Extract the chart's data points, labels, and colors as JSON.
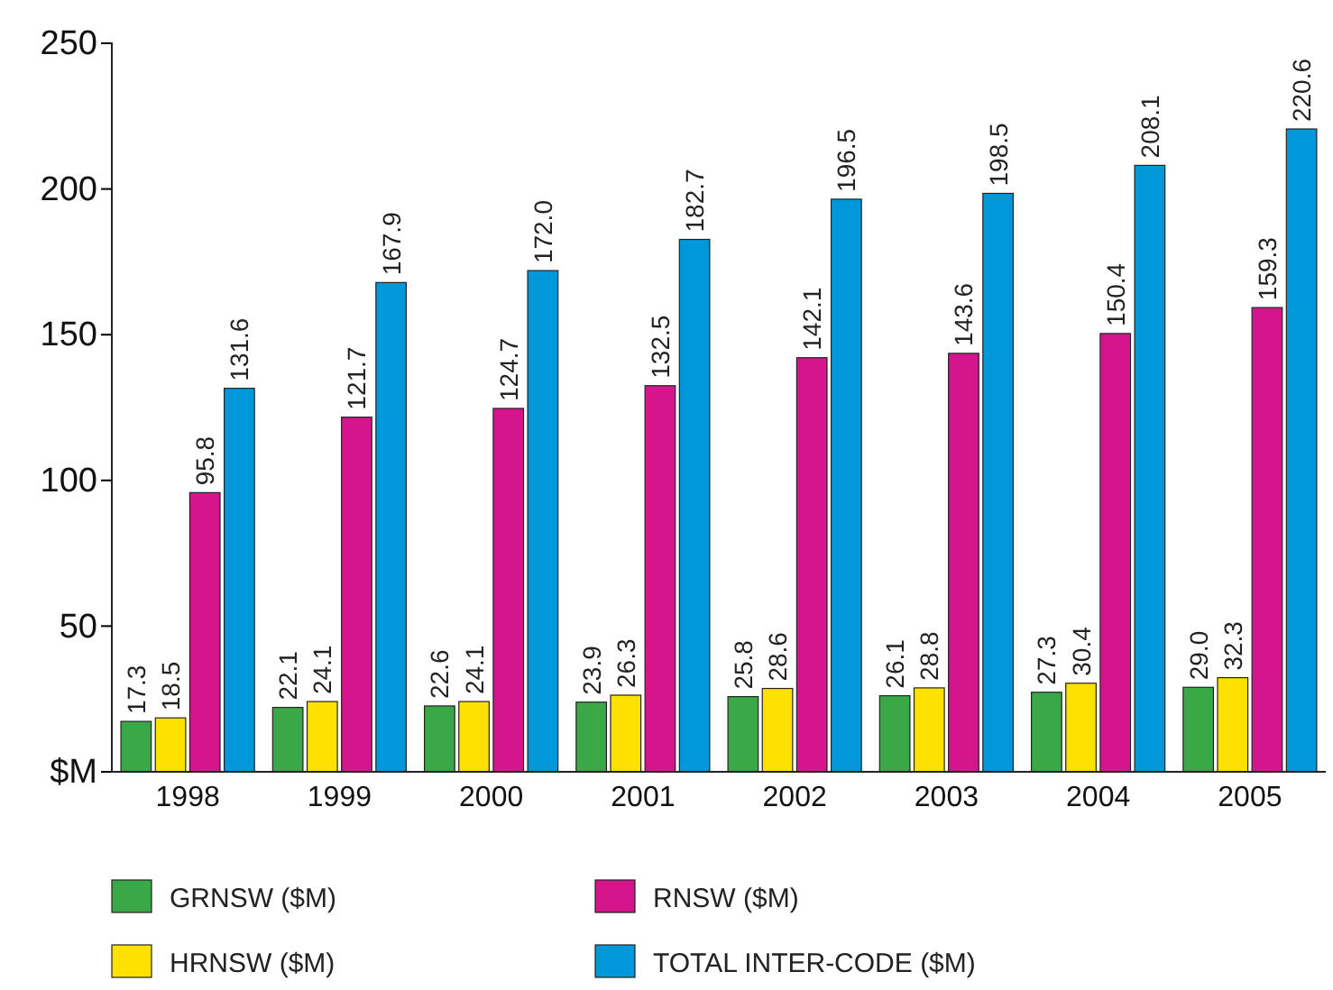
{
  "chart_data": {
    "type": "bar",
    "categories": [
      "1998",
      "1999",
      "2000",
      "2001",
      "2002",
      "2003",
      "2004",
      "2005"
    ],
    "series": [
      {
        "name": "GRNSW ($M)",
        "color": "#3aa846",
        "values": [
          17.3,
          22.1,
          22.6,
          23.9,
          25.8,
          26.1,
          27.3,
          29.0
        ],
        "value_labels": [
          "17.3",
          "22.1",
          "22.6",
          "23.9",
          "25.8",
          "26.1",
          "27.3",
          "29.0"
        ]
      },
      {
        "name": "HRNSW ($M)",
        "color": "#ffe100",
        "values": [
          18.5,
          24.1,
          24.1,
          26.3,
          28.6,
          28.8,
          30.4,
          32.3
        ],
        "value_labels": [
          "18.5",
          "24.1",
          "24.1",
          "26.3",
          "28.6",
          "28.8",
          "30.4",
          "32.3"
        ]
      },
      {
        "name": "RNSW ($M)",
        "color": "#d5158c",
        "values": [
          95.8,
          121.7,
          124.7,
          132.5,
          142.1,
          143.6,
          150.4,
          159.3
        ],
        "value_labels": [
          "95.8",
          "121.7",
          "124.7",
          "132.5",
          "142.1",
          "143.6",
          "150.4",
          "159.3"
        ]
      },
      {
        "name": "TOTAL INTER-CODE ($M)",
        "color": "#0098d8",
        "values": [
          131.6,
          167.9,
          172.0,
          182.7,
          196.5,
          198.5,
          208.1,
          220.6
        ],
        "value_labels": [
          "131.6",
          "167.9",
          "172.0",
          "182.7",
          "196.5",
          "198.5",
          "208.1",
          "220.6"
        ]
      }
    ],
    "ylim": [
      0,
      250
    ],
    "yticks": [
      {
        "value": 0,
        "label": "$M"
      },
      50,
      100,
      150,
      200,
      250
    ],
    "grid": false,
    "legend": "bottom"
  }
}
